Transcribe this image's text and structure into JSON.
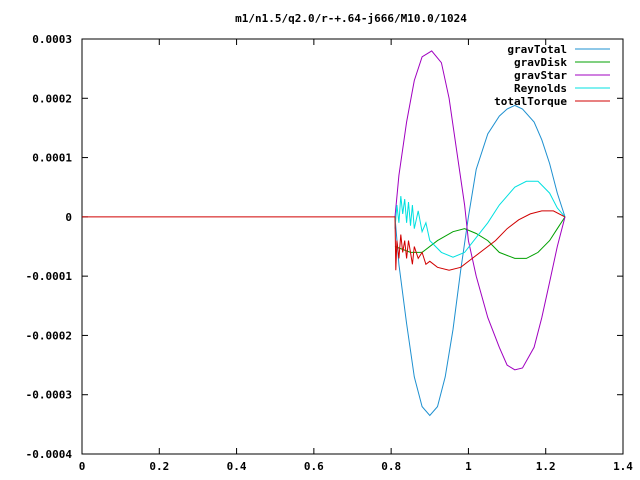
{
  "chart_data": {
    "type": "line",
    "title": "m1/n1.5/q2.0/r-+.64-j666/M10.0/1024",
    "xlabel": "",
    "ylabel": "",
    "xlim": [
      0,
      1.4
    ],
    "ylim": [
      -0.0004,
      0.0003
    ],
    "x_ticks": [
      0,
      0.2,
      0.4,
      0.6,
      0.8,
      1,
      1.2,
      1.4
    ],
    "x_tick_labels": [
      "0",
      "0.2",
      "0.4",
      "0.6",
      "0.8",
      "1",
      "1.2",
      "1.4"
    ],
    "y_ticks": [
      -0.0004,
      -0.0003,
      -0.0002,
      -0.0001,
      0,
      0.0001,
      0.0002,
      0.0003
    ],
    "y_tick_labels": [
      "-0.0004",
      "-0.0003",
      "-0.0002",
      "-0.0001",
      "0",
      "0.0001",
      "0.0002",
      "0.0003"
    ],
    "grid": false,
    "legend_position": "top-right",
    "series": [
      {
        "name": "gravTotal",
        "color": "#1e90d0",
        "points": [
          [
            0.81,
            0
          ],
          [
            0.82,
            -8e-05
          ],
          [
            0.84,
            -0.00018
          ],
          [
            0.86,
            -0.00027
          ],
          [
            0.88,
            -0.00032
          ],
          [
            0.9,
            -0.000335
          ],
          [
            0.92,
            -0.00032
          ],
          [
            0.94,
            -0.00027
          ],
          [
            0.96,
            -0.00019
          ],
          [
            0.98,
            -9e-05
          ],
          [
            1.0,
            0
          ],
          [
            1.02,
            8e-05
          ],
          [
            1.05,
            0.00014
          ],
          [
            1.08,
            0.00017
          ],
          [
            1.1,
            0.000182
          ],
          [
            1.12,
            0.000188
          ],
          [
            1.14,
            0.000182
          ],
          [
            1.17,
            0.00016
          ],
          [
            1.19,
            0.00013
          ],
          [
            1.21,
            9e-05
          ],
          [
            1.23,
            4e-05
          ],
          [
            1.25,
            0
          ]
        ]
      },
      {
        "name": "gravDisk",
        "color": "#00a000",
        "points": [
          [
            0.81,
            -5e-05
          ],
          [
            0.85,
            -6e-05
          ],
          [
            0.88,
            -6e-05
          ],
          [
            0.92,
            -4e-05
          ],
          [
            0.96,
            -2.5e-05
          ],
          [
            0.99,
            -2e-05
          ],
          [
            1.02,
            -2.8e-05
          ],
          [
            1.05,
            -4e-05
          ],
          [
            1.08,
            -6e-05
          ],
          [
            1.12,
            -7e-05
          ],
          [
            1.15,
            -7e-05
          ],
          [
            1.18,
            -6e-05
          ],
          [
            1.21,
            -4e-05
          ],
          [
            1.23,
            -2e-05
          ],
          [
            1.25,
            0
          ]
        ]
      },
      {
        "name": "gravStar",
        "color": "#a000c0",
        "points": [
          [
            0.81,
            0
          ],
          [
            0.82,
            7e-05
          ],
          [
            0.84,
            0.00016
          ],
          [
            0.86,
            0.00023
          ],
          [
            0.88,
            0.00027
          ],
          [
            0.905,
            0.00028
          ],
          [
            0.93,
            0.00026
          ],
          [
            0.95,
            0.0002
          ],
          [
            0.97,
            0.00011
          ],
          [
            0.99,
            2e-05
          ],
          [
            1.0,
            -4e-05
          ],
          [
            1.02,
            -0.0001
          ],
          [
            1.05,
            -0.00017
          ],
          [
            1.08,
            -0.00022
          ],
          [
            1.1,
            -0.00025
          ],
          [
            1.12,
            -0.000258
          ],
          [
            1.14,
            -0.000255
          ],
          [
            1.17,
            -0.00022
          ],
          [
            1.19,
            -0.00017
          ],
          [
            1.21,
            -0.00011
          ],
          [
            1.23,
            -5e-05
          ],
          [
            1.25,
            0
          ]
        ]
      },
      {
        "name": "Reynolds",
        "color": "#00e0e0",
        "points": [
          [
            0.81,
            -2e-05
          ],
          [
            0.815,
            2e-05
          ],
          [
            0.82,
            -1e-05
          ],
          [
            0.825,
            3.5e-05
          ],
          [
            0.83,
            5e-06
          ],
          [
            0.835,
            3e-05
          ],
          [
            0.84,
            -1e-05
          ],
          [
            0.845,
            2.5e-05
          ],
          [
            0.85,
            -1.5e-05
          ],
          [
            0.855,
            2e-05
          ],
          [
            0.86,
            -2e-05
          ],
          [
            0.87,
            1e-05
          ],
          [
            0.88,
            -2.5e-05
          ],
          [
            0.89,
            -1e-05
          ],
          [
            0.9,
            -4e-05
          ],
          [
            0.93,
            -6e-05
          ],
          [
            0.96,
            -6.8e-05
          ],
          [
            0.99,
            -6e-05
          ],
          [
            1.02,
            -3.5e-05
          ],
          [
            1.05,
            -1e-05
          ],
          [
            1.08,
            2e-05
          ],
          [
            1.12,
            5e-05
          ],
          [
            1.15,
            6e-05
          ],
          [
            1.18,
            6e-05
          ],
          [
            1.21,
            4e-05
          ],
          [
            1.23,
            1.5e-05
          ],
          [
            1.25,
            0
          ]
        ]
      },
      {
        "name": "totalTorque",
        "color": "#d00000",
        "points": [
          [
            0,
            0
          ],
          [
            0.8,
            0
          ],
          [
            0.81,
            0
          ],
          [
            0.812,
            -9e-05
          ],
          [
            0.815,
            -4e-05
          ],
          [
            0.82,
            -7e-05
          ],
          [
            0.825,
            -3e-05
          ],
          [
            0.83,
            -6e-05
          ],
          [
            0.835,
            -4e-05
          ],
          [
            0.84,
            -7e-05
          ],
          [
            0.845,
            -4e-05
          ],
          [
            0.85,
            -6e-05
          ],
          [
            0.855,
            -8e-05
          ],
          [
            0.86,
            -5e-05
          ],
          [
            0.87,
            -7e-05
          ],
          [
            0.88,
            -6e-05
          ],
          [
            0.89,
            -8e-05
          ],
          [
            0.9,
            -7.5e-05
          ],
          [
            0.92,
            -8.5e-05
          ],
          [
            0.95,
            -9e-05
          ],
          [
            0.98,
            -8.5e-05
          ],
          [
            1.01,
            -7e-05
          ],
          [
            1.04,
            -5.5e-05
          ],
          [
            1.07,
            -4e-05
          ],
          [
            1.1,
            -2e-05
          ],
          [
            1.13,
            -5e-06
          ],
          [
            1.16,
            5e-06
          ],
          [
            1.19,
            1e-05
          ],
          [
            1.22,
            1e-05
          ],
          [
            1.25,
            0
          ]
        ]
      }
    ]
  }
}
